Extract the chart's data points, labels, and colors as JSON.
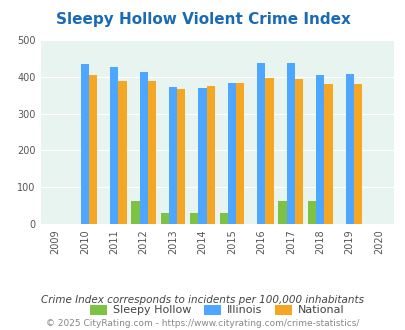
{
  "title": "Sleepy Hollow Violent Crime Index",
  "all_years": [
    2009,
    2010,
    2011,
    2012,
    2013,
    2014,
    2015,
    2016,
    2017,
    2018,
    2019,
    2020
  ],
  "bar_years": [
    2010,
    2011,
    2012,
    2013,
    2014,
    2015,
    2016,
    2017,
    2018,
    2019
  ],
  "sleepy_hollow": [
    0,
    0,
    63,
    32,
    32,
    32,
    0,
    63,
    63,
    0
  ],
  "illinois": [
    433,
    427,
    413,
    373,
    369,
    383,
    437,
    436,
    404,
    407
  ],
  "national": [
    405,
    387,
    387,
    365,
    375,
    383,
    397,
    394,
    379,
    379
  ],
  "color_sleepy": "#7dc242",
  "color_illinois": "#4da6ff",
  "color_national": "#f5a623",
  "ylim": [
    0,
    500
  ],
  "yticks": [
    0,
    100,
    200,
    300,
    400,
    500
  ],
  "bg_color": "#e8f4f0",
  "subtitle": "Crime Index corresponds to incidents per 100,000 inhabitants",
  "footer": "© 2025 CityRating.com - https://www.cityrating.com/crime-statistics/",
  "legend_labels": [
    "Sleepy Hollow",
    "Illinois",
    "National"
  ],
  "title_color": "#1a6bb5",
  "subtitle_color": "#444444",
  "footer_color": "#888888"
}
